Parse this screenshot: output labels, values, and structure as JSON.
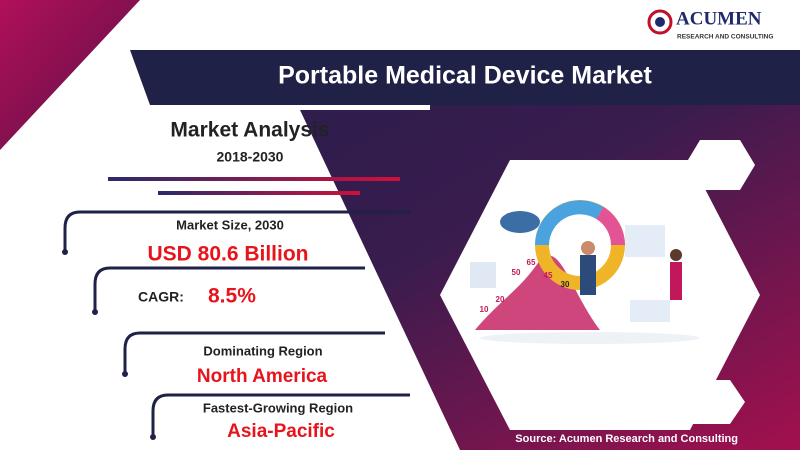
{
  "brand": {
    "name": "ACUMEN",
    "tagline": "RESEARCH AND CONSULTING"
  },
  "title": "Portable Medical Device Market",
  "analysis": {
    "heading": "Market Analysis",
    "period": "2018-2030"
  },
  "items": [
    {
      "label": "Market Size, 2030",
      "value": "USD 80.6 Billion"
    },
    {
      "label": "CAGR:",
      "value": "8.5%"
    },
    {
      "label": "Dominating Region",
      "value": "North America"
    },
    {
      "label": "Fastest-Growing Region",
      "value": "Asia-Pacific"
    }
  ],
  "illustration": {
    "labels": [
      "65",
      "50",
      "45",
      "30",
      "20",
      "10"
    ]
  },
  "source": "Source: Acumen Research and Consulting"
}
